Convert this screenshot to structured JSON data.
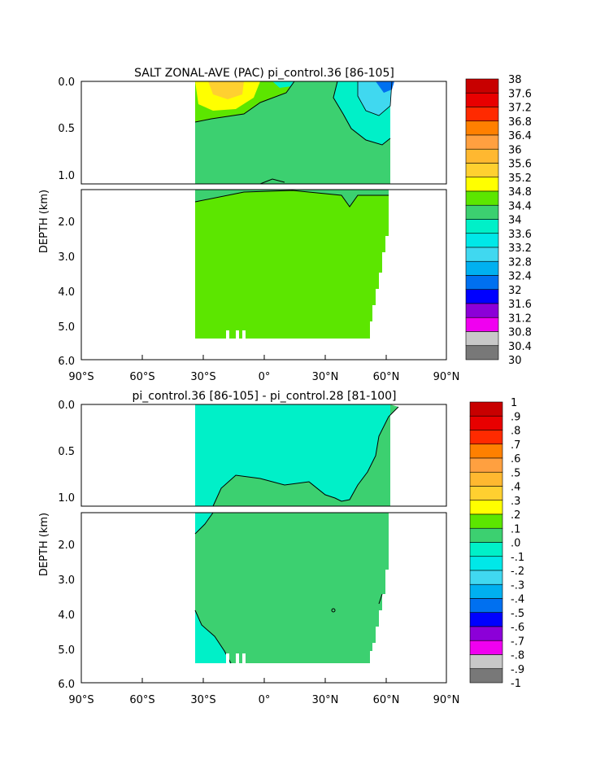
{
  "chart_data": [
    {
      "type": "heatmap",
      "title": "SALT ZONAL-AVE (PAC) pi_control.36 [86-105]",
      "ylabel": "DEPTH (km)",
      "x_ticks": [
        "90°S",
        "60°S",
        "30°S",
        "0°",
        "30°N",
        "60°N",
        "90°N"
      ],
      "xlim": [
        -90,
        90
      ],
      "y_ticks_upper": [
        "0.0",
        "0.5",
        "1.0"
      ],
      "y_ticks_lower": [
        "2.0",
        "3.0",
        "4.0",
        "5.0",
        "6.0"
      ],
      "ylim": [
        0,
        6
      ],
      "colorbar_labels": [
        "38",
        "37.6",
        "37.2",
        "36.8",
        "36.4",
        "36",
        "35.6",
        "35.2",
        "34.8",
        "34.4",
        "34",
        "33.6",
        "33.2",
        "32.8",
        "32.4",
        "32",
        "31.6",
        "31.2",
        "30.8",
        "30.4",
        "30"
      ],
      "colorbar_colors": [
        "#c80000",
        "#e80000",
        "#ff2a00",
        "#ff8000",
        "#ffa040",
        "#ffb830",
        "#ffd030",
        "#ffff00",
        "#5ce600",
        "#3cd070",
        "#00f0c8",
        "#00e8e8",
        "#40d8f0",
        "#00b0f0",
        "#0070f0",
        "#0000ff",
        "#8c00d8",
        "#f000f0",
        "#c8c8c8",
        "#787878"
      ]
    },
    {
      "type": "heatmap",
      "title": "pi_control.36 [86-105] - pi_control.28 [81-100]",
      "ylabel": "DEPTH (km)",
      "x_ticks": [
        "90°S",
        "60°S",
        "30°S",
        "0°",
        "30°N",
        "60°N",
        "90°N"
      ],
      "xlim": [
        -90,
        90
      ],
      "y_ticks_upper": [
        "0.0",
        "0.5",
        "1.0"
      ],
      "y_ticks_lower": [
        "2.0",
        "3.0",
        "4.0",
        "5.0",
        "6.0"
      ],
      "ylim": [
        0,
        6
      ],
      "colorbar_labels": [
        "1",
        ".9",
        ".8",
        ".7",
        ".6",
        ".5",
        ".4",
        ".3",
        ".2",
        ".1",
        ".0",
        "-.1",
        "-.2",
        "-.3",
        "-.4",
        "-.5",
        "-.6",
        "-.7",
        "-.8",
        "-.9",
        "-1"
      ],
      "colorbar_colors": [
        "#c80000",
        "#e80000",
        "#ff2a00",
        "#ff8000",
        "#ffa040",
        "#ffb830",
        "#ffd030",
        "#ffff00",
        "#5ce600",
        "#3cd070",
        "#00f0c8",
        "#00e8e8",
        "#40d8f0",
        "#00b0f0",
        "#0070f0",
        "#0000ff",
        "#8c00d8",
        "#f000f0",
        "#c8c8c8",
        "#787878"
      ]
    }
  ]
}
